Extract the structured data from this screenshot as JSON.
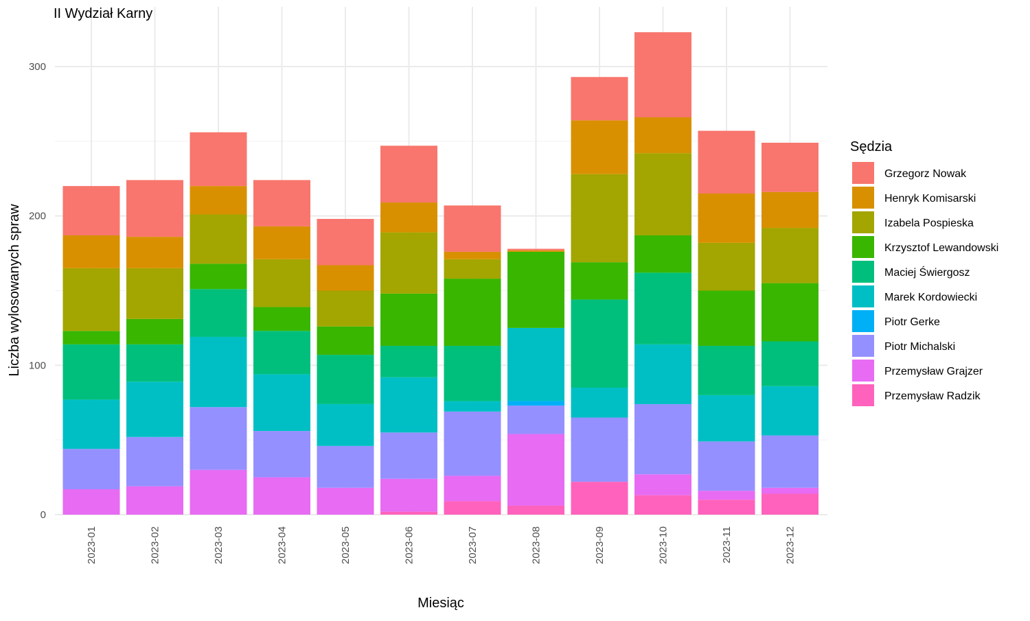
{
  "chart_data": {
    "type": "bar",
    "stacked": true,
    "title": "II Wydział Karny",
    "xlabel": "Miesiąc",
    "ylabel": "Liczba wylosowanych spraw",
    "ylim": [
      0,
      335
    ],
    "yticks": [
      0,
      100,
      200,
      300
    ],
    "grid": true,
    "legend_title": "Sędzia",
    "legend_position": "right",
    "categories": [
      "2023-01",
      "2023-02",
      "2023-03",
      "2023-04",
      "2023-05",
      "2023-06",
      "2023-07",
      "2023-08",
      "2023-09",
      "2023-10",
      "2023-11",
      "2023-12"
    ],
    "series": [
      {
        "name": "Grzegorz Nowak",
        "color": "#F8766D",
        "values": [
          33,
          38,
          36,
          31,
          31,
          38,
          31,
          1,
          29,
          57,
          42,
          33
        ]
      },
      {
        "name": "Henryk Komisarski",
        "color": "#D89000",
        "values": [
          22,
          21,
          19,
          22,
          17,
          20,
          5,
          1,
          36,
          24,
          33,
          24
        ]
      },
      {
        "name": "Izabela Pospieska",
        "color": "#A3A500",
        "values": [
          42,
          34,
          33,
          32,
          24,
          41,
          13,
          0,
          59,
          55,
          32,
          37
        ]
      },
      {
        "name": "Krzysztof Lewandowski",
        "color": "#39B600",
        "values": [
          9,
          17,
          17,
          16,
          19,
          35,
          45,
          51,
          25,
          25,
          37,
          39
        ]
      },
      {
        "name": "Maciej Świergosz",
        "color": "#00BF7D",
        "values": [
          37,
          25,
          32,
          29,
          33,
          21,
          37,
          0,
          59,
          48,
          33,
          30
        ]
      },
      {
        "name": "Marek Kordowiecki",
        "color": "#00BFC4",
        "values": [
          33,
          37,
          47,
          38,
          28,
          37,
          7,
          49,
          20,
          40,
          31,
          33
        ]
      },
      {
        "name": "Piotr Gerke",
        "color": "#00B0F6",
        "values": [
          0,
          0,
          0,
          0,
          0,
          0,
          0,
          3,
          0,
          0,
          0,
          0
        ]
      },
      {
        "name": "Piotr Michalski",
        "color": "#9590FF",
        "values": [
          27,
          33,
          42,
          31,
          28,
          31,
          43,
          19,
          43,
          47,
          33,
          35
        ]
      },
      {
        "name": "Przemysław Grajzer",
        "color": "#E76BF3",
        "values": [
          17,
          19,
          30,
          25,
          18,
          22,
          17,
          48,
          0,
          14,
          6,
          4
        ]
      },
      {
        "name": "Przemysław Radzik",
        "color": "#FF62BC",
        "values": [
          0,
          0,
          0,
          0,
          0,
          2,
          9,
          6,
          22,
          13,
          10,
          14
        ]
      }
    ]
  }
}
